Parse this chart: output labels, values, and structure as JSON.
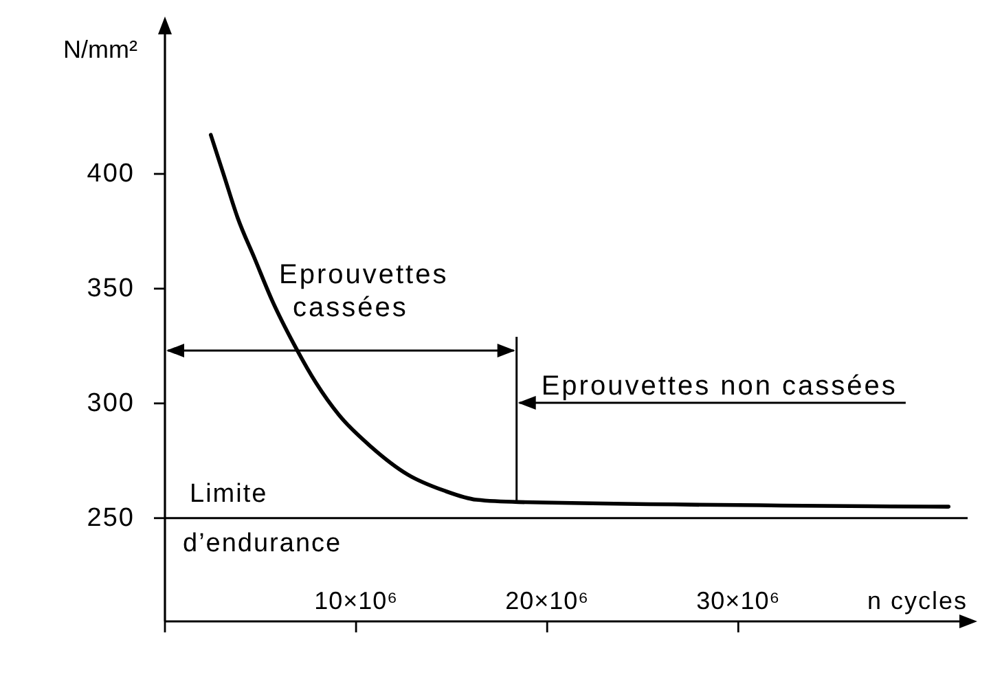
{
  "chart_data": {
    "type": "line",
    "xlabel": "n cycles",
    "ylabel": "N/mm²",
    "x": [
      2400000,
      3100000,
      3800000,
      4700000,
      5600000,
      6800000,
      7900000,
      9100000,
      10800000,
      12700000,
      14600000,
      16300000,
      18500000,
      41000000
    ],
    "values": [
      417,
      399,
      381,
      363,
      345,
      325,
      309,
      295,
      281,
      269,
      262,
      258,
      257,
      255
    ],
    "color": "#000000",
    "xlim": [
      0,
      42000000
    ],
    "xticks": [
      {
        "value": 0,
        "label": null
      },
      {
        "value": 10000000,
        "label": "10×10⁶"
      },
      {
        "value": 20000000,
        "label": "20×10⁶"
      },
      {
        "value": 30000000,
        "label": "30×10⁶"
      }
    ],
    "ylim": [
      205,
      465
    ],
    "yticks": [
      250,
      300,
      350,
      400
    ],
    "ref_lines": [
      {
        "axis": "y",
        "value": 250,
        "label": "Limite d’endurance"
      },
      {
        "axis": "x",
        "value": 18400000
      }
    ],
    "annotations": [
      "Eprouvettes cassées",
      "Eprouvettes non cassées"
    ]
  }
}
